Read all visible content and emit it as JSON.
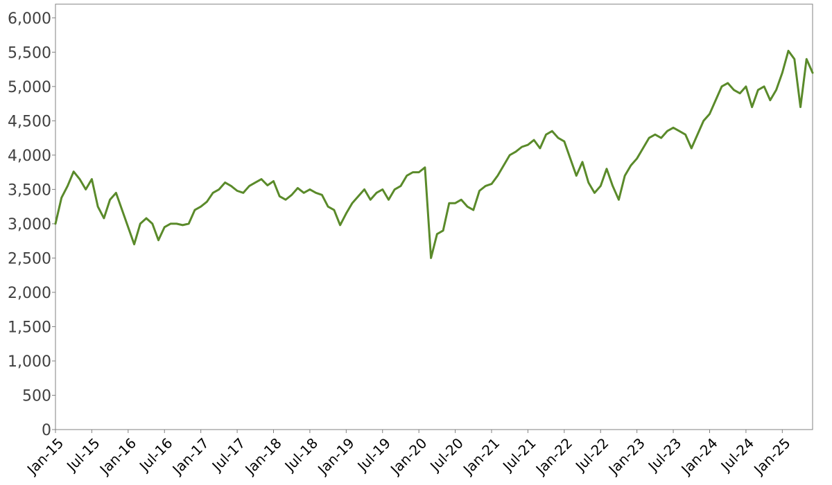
{
  "colors": {
    "line": "#5a8a2a",
    "axis": "#808080",
    "tick_text_y": "#404040",
    "tick_text_x": "#000000",
    "background": "#ffffff"
  },
  "chart_data": {
    "type": "line",
    "title": "",
    "xlabel": "",
    "ylabel": "",
    "grid": false,
    "legend": "none",
    "ylim": [
      0,
      6200
    ],
    "xlim": [
      "2015-01",
      "2025-06"
    ],
    "y_ticks": [
      0,
      500,
      1000,
      1500,
      2000,
      2500,
      3000,
      3500,
      4000,
      4500,
      5000,
      5500,
      6000
    ],
    "y_tick_labels": [
      "0",
      "500",
      "1,000",
      "1,500",
      "2,000",
      "2,500",
      "3,000",
      "3,500",
      "4,000",
      "4,500",
      "5,000",
      "5,500",
      "6,000"
    ],
    "x_tick_labels": [
      "Jan-15",
      "Jul-15",
      "Jan-16",
      "Jul-16",
      "Jan-17",
      "Jul-17",
      "Jan-18",
      "Jul-18",
      "Jan-19",
      "Jul-19",
      "Jan-20",
      "Jul-20",
      "Jan-21",
      "Jul-21",
      "Jan-22",
      "Jul-22",
      "Jan-23",
      "Jul-23",
      "Jan-24",
      "Jul-24",
      "Jan-25"
    ],
    "x_tick_dates": [
      "2015-01",
      "2015-07",
      "2016-01",
      "2016-07",
      "2017-01",
      "2017-07",
      "2018-01",
      "2018-07",
      "2019-01",
      "2019-07",
      "2020-01",
      "2020-07",
      "2021-01",
      "2021-07",
      "2022-01",
      "2022-07",
      "2023-01",
      "2023-07",
      "2024-01",
      "2024-07",
      "2025-01"
    ],
    "series": [
      {
        "points": [
          [
            "2015-01",
            3000
          ],
          [
            "2015-02",
            3380
          ],
          [
            "2015-03",
            3550
          ],
          [
            "2015-04",
            3760
          ],
          [
            "2015-05",
            3650
          ],
          [
            "2015-06",
            3500
          ],
          [
            "2015-07",
            3650
          ],
          [
            "2015-08",
            3250
          ],
          [
            "2015-09",
            3080
          ],
          [
            "2015-10",
            3350
          ],
          [
            "2015-11",
            3450
          ],
          [
            "2015-12",
            3200
          ],
          [
            "2016-01",
            2950
          ],
          [
            "2016-02",
            2700
          ],
          [
            "2016-03",
            3000
          ],
          [
            "2016-04",
            3080
          ],
          [
            "2016-05",
            3000
          ],
          [
            "2016-06",
            2760
          ],
          [
            "2016-07",
            2950
          ],
          [
            "2016-08",
            3000
          ],
          [
            "2016-09",
            3000
          ],
          [
            "2016-10",
            2980
          ],
          [
            "2016-11",
            3000
          ],
          [
            "2016-12",
            3200
          ],
          [
            "2017-01",
            3250
          ],
          [
            "2017-02",
            3320
          ],
          [
            "2017-03",
            3450
          ],
          [
            "2017-04",
            3500
          ],
          [
            "2017-05",
            3600
          ],
          [
            "2017-06",
            3550
          ],
          [
            "2017-07",
            3480
          ],
          [
            "2017-08",
            3450
          ],
          [
            "2017-09",
            3550
          ],
          [
            "2017-10",
            3600
          ],
          [
            "2017-11",
            3650
          ],
          [
            "2017-12",
            3560
          ],
          [
            "2018-01",
            3620
          ],
          [
            "2018-02",
            3400
          ],
          [
            "2018-03",
            3350
          ],
          [
            "2018-04",
            3420
          ],
          [
            "2018-05",
            3520
          ],
          [
            "2018-06",
            3450
          ],
          [
            "2018-07",
            3500
          ],
          [
            "2018-08",
            3450
          ],
          [
            "2018-09",
            3420
          ],
          [
            "2018-10",
            3250
          ],
          [
            "2018-11",
            3200
          ],
          [
            "2018-12",
            2980
          ],
          [
            "2019-01",
            3150
          ],
          [
            "2019-02",
            3300
          ],
          [
            "2019-03",
            3400
          ],
          [
            "2019-04",
            3500
          ],
          [
            "2019-05",
            3350
          ],
          [
            "2019-06",
            3450
          ],
          [
            "2019-07",
            3500
          ],
          [
            "2019-08",
            3350
          ],
          [
            "2019-09",
            3500
          ],
          [
            "2019-10",
            3550
          ],
          [
            "2019-11",
            3700
          ],
          [
            "2019-12",
            3750
          ],
          [
            "2020-01",
            3750
          ],
          [
            "2020-02",
            3820
          ],
          [
            "2020-03",
            2500
          ],
          [
            "2020-04",
            2850
          ],
          [
            "2020-05",
            2900
          ],
          [
            "2020-06",
            3300
          ],
          [
            "2020-07",
            3300
          ],
          [
            "2020-08",
            3350
          ],
          [
            "2020-09",
            3250
          ],
          [
            "2020-10",
            3200
          ],
          [
            "2020-11",
            3480
          ],
          [
            "2020-12",
            3550
          ],
          [
            "2021-01",
            3580
          ],
          [
            "2021-02",
            3700
          ],
          [
            "2021-03",
            3850
          ],
          [
            "2021-04",
            4000
          ],
          [
            "2021-05",
            4050
          ],
          [
            "2021-06",
            4120
          ],
          [
            "2021-07",
            4150
          ],
          [
            "2021-08",
            4220
          ],
          [
            "2021-09",
            4100
          ],
          [
            "2021-10",
            4300
          ],
          [
            "2021-11",
            4350
          ],
          [
            "2021-12",
            4250
          ],
          [
            "2022-01",
            4200
          ],
          [
            "2022-02",
            3950
          ],
          [
            "2022-03",
            3700
          ],
          [
            "2022-04",
            3900
          ],
          [
            "2022-05",
            3600
          ],
          [
            "2022-06",
            3450
          ],
          [
            "2022-07",
            3550
          ],
          [
            "2022-08",
            3800
          ],
          [
            "2022-09",
            3550
          ],
          [
            "2022-10",
            3350
          ],
          [
            "2022-11",
            3700
          ],
          [
            "2022-12",
            3850
          ],
          [
            "2023-01",
            3950
          ],
          [
            "2023-02",
            4100
          ],
          [
            "2023-03",
            4250
          ],
          [
            "2023-04",
            4300
          ],
          [
            "2023-05",
            4250
          ],
          [
            "2023-06",
            4350
          ],
          [
            "2023-07",
            4400
          ],
          [
            "2023-08",
            4350
          ],
          [
            "2023-09",
            4300
          ],
          [
            "2023-10",
            4100
          ],
          [
            "2023-11",
            4300
          ],
          [
            "2023-12",
            4500
          ],
          [
            "2024-01",
            4600
          ],
          [
            "2024-02",
            4800
          ],
          [
            "2024-03",
            5000
          ],
          [
            "2024-04",
            5050
          ],
          [
            "2024-05",
            4950
          ],
          [
            "2024-06",
            4900
          ],
          [
            "2024-07",
            5000
          ],
          [
            "2024-08",
            4700
          ],
          [
            "2024-09",
            4950
          ],
          [
            "2024-10",
            5000
          ],
          [
            "2024-11",
            4800
          ],
          [
            "2024-12",
            4950
          ],
          [
            "2025-01",
            5200
          ],
          [
            "2025-02",
            5520
          ],
          [
            "2025-03",
            5400
          ],
          [
            "2025-04",
            4700
          ],
          [
            "2025-05",
            5400
          ],
          [
            "2025-06",
            5200
          ]
        ]
      }
    ]
  }
}
